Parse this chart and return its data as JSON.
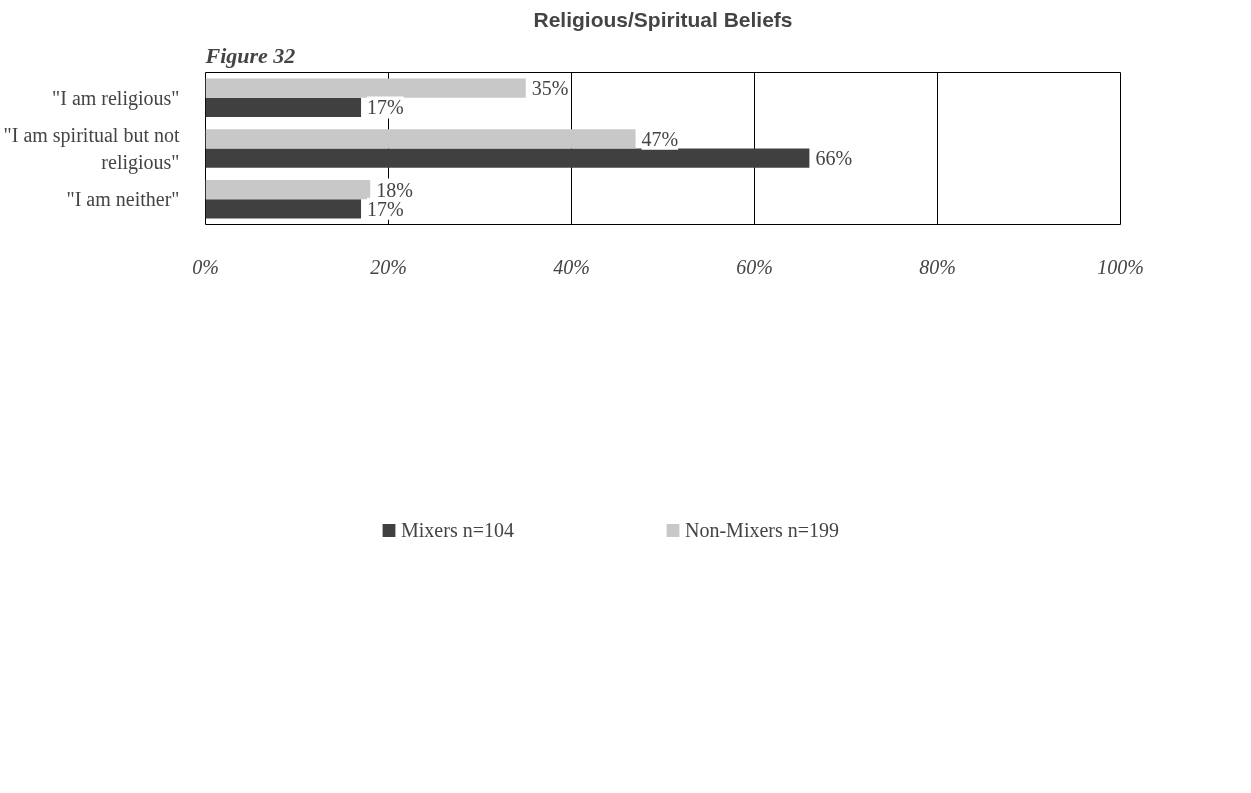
{
  "chart_data": {
    "type": "bar",
    "orientation": "horizontal",
    "title": "Religious/Spiritual Beliefs",
    "annotations": [
      "Figure 32"
    ],
    "categories": [
      "\"I am religious\"",
      "\"I am spiritual but not religious\"",
      "\"I am neither\""
    ],
    "series": [
      {
        "name": "Mixers n=104",
        "color": "#404040",
        "values": [
          17,
          66,
          17
        ],
        "value_labels": [
          "17%",
          "66%",
          "17%"
        ]
      },
      {
        "name": "Non-Mixers n=199",
        "color": "#c8c8c8",
        "values": [
          35,
          47,
          18
        ],
        "value_labels": [
          "35%",
          "47%",
          "18%"
        ]
      }
    ],
    "xlim": [
      0,
      100
    ],
    "xticks": [
      {
        "value": 0,
        "label": "0%"
      },
      {
        "value": 20,
        "label": "20%"
      },
      {
        "value": 40,
        "label": "40%"
      },
      {
        "value": 60,
        "label": "60%"
      },
      {
        "value": 80,
        "label": "80%"
      },
      {
        "value": 100,
        "label": "100%"
      }
    ],
    "grid": "x",
    "legend": "bottom"
  }
}
